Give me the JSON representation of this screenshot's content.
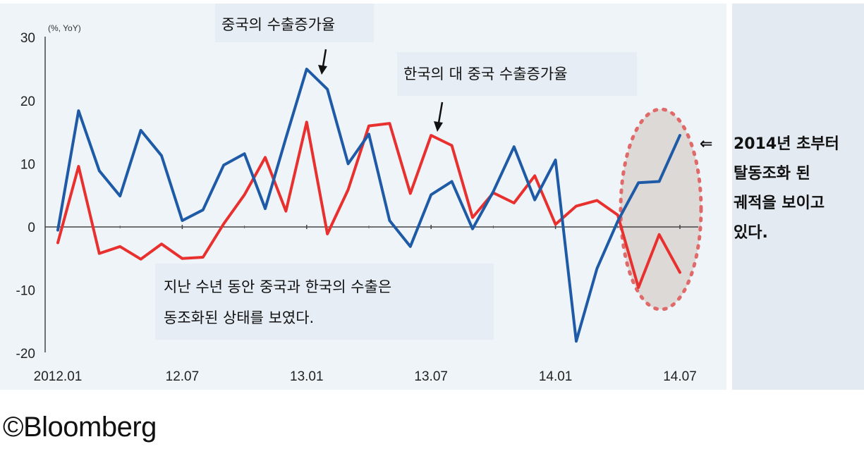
{
  "chart_data": {
    "type": "line",
    "unit_label": "(%, YoY)",
    "x_tick_labels": [
      "2012.01",
      "12.07",
      "13.01",
      "13.07",
      "14.01",
      "14.07"
    ],
    "y_tick_labels": [
      "30",
      "20",
      "10",
      "0",
      "-10",
      "-20"
    ],
    "ylim": [
      -20,
      30
    ],
    "x": [
      "2012.01",
      "2012.02",
      "2012.03",
      "2012.04",
      "2012.05",
      "2012.06",
      "2012.07",
      "2012.08",
      "2012.09",
      "2012.10",
      "2012.11",
      "2012.12",
      "2013.01",
      "2013.02",
      "2013.03",
      "2013.04",
      "2013.05",
      "2013.06",
      "2013.07",
      "2013.08",
      "2013.09",
      "2013.10",
      "2013.11",
      "2013.12",
      "2014.01",
      "2014.02",
      "2014.03",
      "2014.04",
      "2014.05",
      "2014.06",
      "2014.07"
    ],
    "series": [
      {
        "name": "중국의 수출증가율",
        "color": "#1f5aa6",
        "values": [
          -0.5,
          18.4,
          8.9,
          4.9,
          15.3,
          11.3,
          1.0,
          2.7,
          9.8,
          11.6,
          2.9,
          14.1,
          25.0,
          21.8,
          10.0,
          14.7,
          1.0,
          -3.1,
          5.1,
          7.2,
          -0.3,
          5.6,
          12.7,
          4.3,
          10.6,
          -18.1,
          -6.6,
          0.9,
          7.0,
          7.2,
          14.5
        ]
      },
      {
        "name": "한국의 대 중국 수출증가율",
        "color": "#e8312f",
        "values": [
          -2.5,
          9.6,
          -4.2,
          -3.1,
          -5.1,
          -2.7,
          -5.0,
          -4.8,
          0.5,
          5.1,
          11.0,
          2.5,
          16.6,
          -1.1,
          5.9,
          16.0,
          16.4,
          5.3,
          14.5,
          12.9,
          1.5,
          5.4,
          3.8,
          8.1,
          0.4,
          3.3,
          4.2,
          1.9,
          -9.6,
          -1.2,
          -7.2
        ]
      }
    ],
    "annotations": [
      {
        "id": "china",
        "text": "중국의 수출증가율"
      },
      {
        "id": "korea",
        "text": "한국의 대 중국 수출증가율"
      },
      {
        "id": "bottom",
        "lines": [
          "지난 수년 동안 중국과 한국의 수출은",
          "동조화된 상태를 보였다."
        ]
      }
    ],
    "side_note": {
      "arrow": "⇐",
      "lines": [
        "2014년 초부터",
        "탈동조화 된",
        "궤적을 보이고",
        "있다."
      ]
    }
  },
  "credit": "©Bloomberg",
  "colors": {
    "plot_bg": "#eef4f8",
    "panel_bg": "#e3eaf1",
    "box_bg": "#e6edf4",
    "ellipse_fill": "#d8d4d0",
    "ellipse_stroke": "#e06a6a"
  }
}
